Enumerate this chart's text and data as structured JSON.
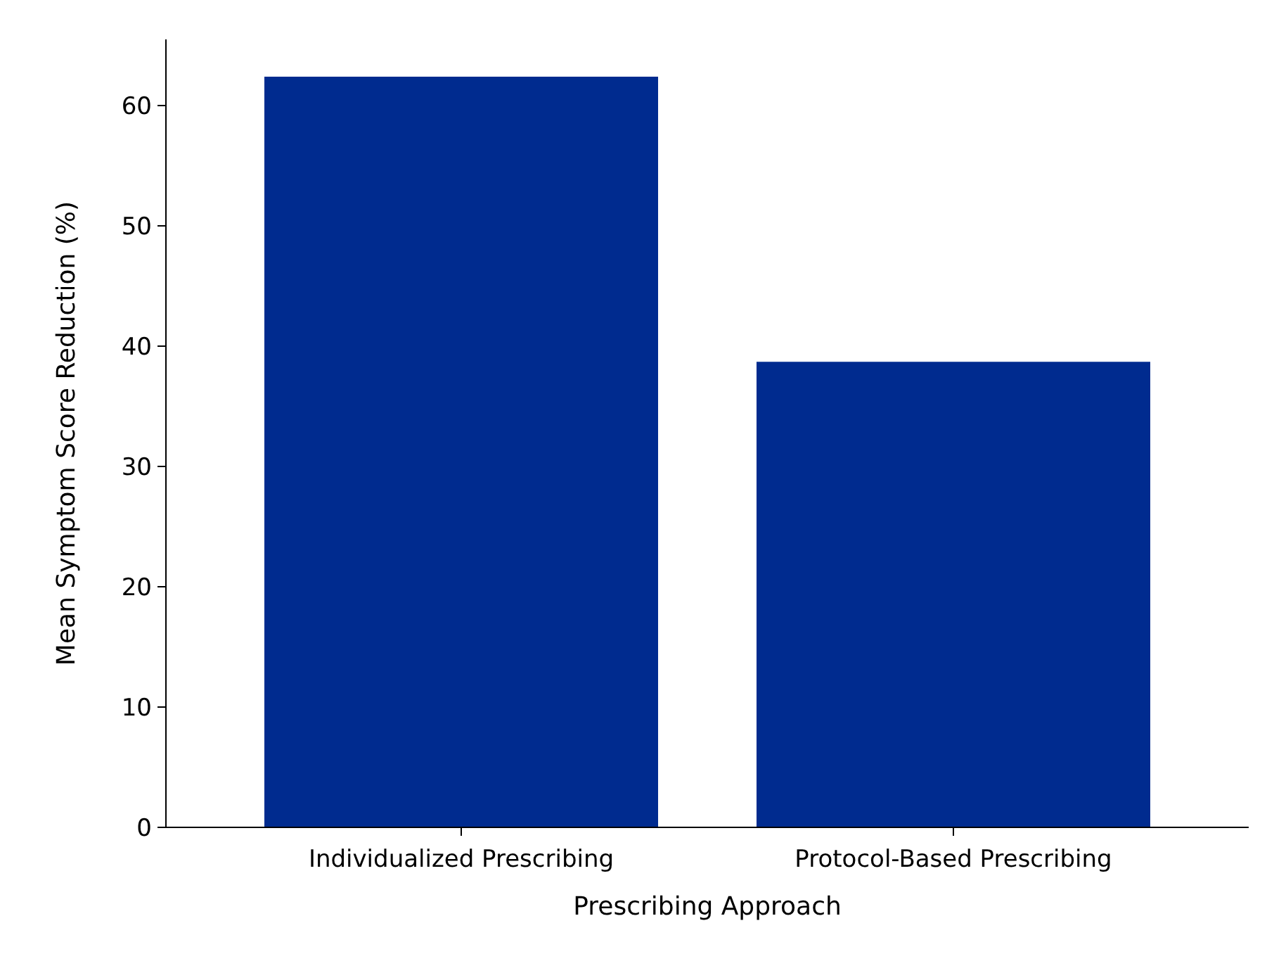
{
  "chart_data": {
    "type": "bar",
    "xlabel": "Prescribing Approach",
    "ylabel": "Mean Symptom Score Reduction (%)",
    "categories": [
      "Individualized Prescribing",
      "Protocol-Based Prescribing"
    ],
    "values": [
      62.4,
      38.7
    ],
    "color": "#002b8f",
    "ylim": [
      0,
      65.5
    ],
    "yticks": [
      0,
      10,
      20,
      30,
      40,
      50,
      60
    ],
    "grid": false
  }
}
